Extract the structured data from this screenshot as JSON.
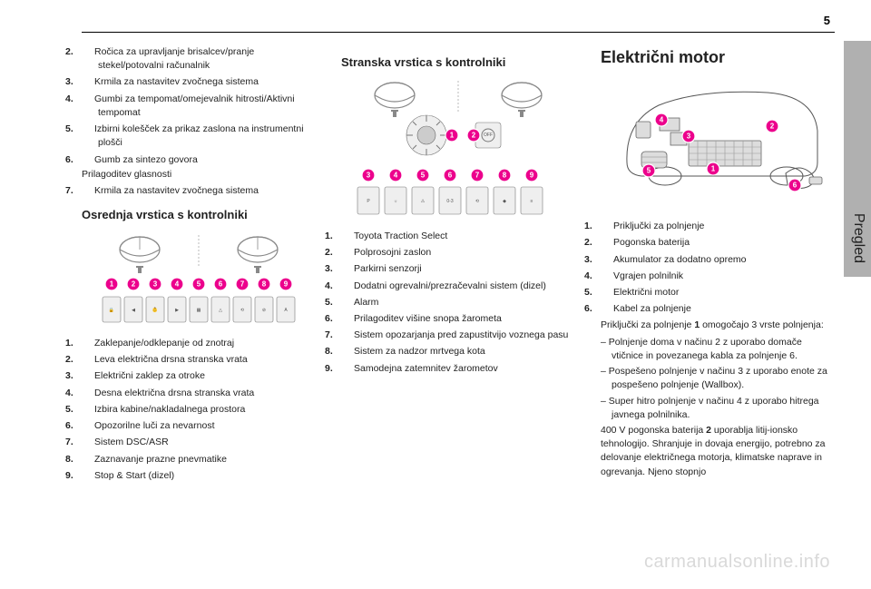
{
  "page_number": "5",
  "side_label": "Pregled",
  "watermark": "carmanualsonline.info",
  "colors": {
    "marker_fill": "#ec008c",
    "marker_text": "#ffffff",
    "diagram_stroke": "#888888",
    "panel_fill": "#efefef",
    "side_tab": "#b0b0b0",
    "watermark_color": "#d9d9d9"
  },
  "col1": {
    "upper_list": [
      {
        "n": "2.",
        "t": "Ročica za upravljanje brisalcev/pranje stekel/potovalni računalnik"
      },
      {
        "n": "3.",
        "t": "Krmila za nastavitev zvočnega sistema"
      },
      {
        "n": "4.",
        "t": "Gumbi za tempomat/omejevalnik hitrosti/Aktivni tempomat"
      },
      {
        "n": "5.",
        "t": "Izbirni kolešček za prikaz zaslona na instrumentni plošči"
      },
      {
        "n": "6.",
        "t": "Gumb za sintezo govora"
      },
      {
        "n": "",
        "t": "Prilagoditev glasnosti"
      },
      {
        "n": "7.",
        "t": "Krmila za nastavitev zvočnega sistema"
      }
    ],
    "heading": "Osrednja vrstica s kontrolniki",
    "markers": [
      "1",
      "2",
      "3",
      "4",
      "5",
      "6",
      "7",
      "8",
      "9"
    ],
    "lower_list": [
      {
        "n": "1.",
        "t": "Zaklepanje/odklepanje od znotraj"
      },
      {
        "n": "2.",
        "t": "Leva električna drsna stranska vrata"
      },
      {
        "n": "3.",
        "t": "Električni zaklep za otroke"
      },
      {
        "n": "4.",
        "t": "Desna električna drsna stranska vrata"
      },
      {
        "n": "5.",
        "t": "Izbira kabine/nakladalnega prostora"
      },
      {
        "n": "6.",
        "t": "Opozorilne luči za nevarnost"
      },
      {
        "n": "7.",
        "t": "Sistem DSC/ASR"
      },
      {
        "n": "8.",
        "t": "Zaznavanje prazne pnevmatike"
      },
      {
        "n": "9.",
        "t": "Stop & Start (dizel)"
      }
    ]
  },
  "col2": {
    "heading": "Stranska vrstica s kontrolniki",
    "markers_top": [
      "1",
      "2"
    ],
    "markers_bottom": [
      "3",
      "4",
      "5",
      "6",
      "7",
      "8",
      "9"
    ],
    "list": [
      {
        "n": "1.",
        "t": "Toyota Traction Select"
      },
      {
        "n": "2.",
        "t": "Polprosojni zaslon"
      },
      {
        "n": "3.",
        "t": "Parkirni senzorji"
      },
      {
        "n": "4.",
        "t": "Dodatni ogrevalni/prezračevalni sistem (dizel)"
      },
      {
        "n": "5.",
        "t": "Alarm"
      },
      {
        "n": "6.",
        "t": "Prilagoditev višine snopa žarometa"
      },
      {
        "n": "7.",
        "t": "Sistem opozarjanja pred zapustitvijo voznega pasu"
      },
      {
        "n": "8.",
        "t": "Sistem za nadzor mrtvega kota"
      },
      {
        "n": "9.",
        "t": "Samodejna zatemnitev žarometov"
      }
    ]
  },
  "col3": {
    "heading": "Električni motor",
    "markers": [
      "1",
      "2",
      "3",
      "4",
      "5",
      "6"
    ],
    "list": [
      {
        "n": "1.",
        "t": "Priključki za polnjenje"
      },
      {
        "n": "2.",
        "t": "Pogonska baterija"
      },
      {
        "n": "3.",
        "t": "Akumulator za dodatno opremo"
      },
      {
        "n": "4.",
        "t": "Vgrajen polnilnik"
      },
      {
        "n": "5.",
        "t": "Električni motor"
      },
      {
        "n": "6.",
        "t": "Kabel za polnjenje"
      }
    ],
    "para1_a": "Priključki za polnjenje ",
    "para1_bold1": "1",
    "para1_b": " omogočajo 3 vrste polnjenja:",
    "dashes": [
      "–  Polnjenje doma v načinu 2 z uporabo domače vtičnice in povezanega kabla za polnjenje 6.",
      "–  Pospešeno polnjenje v načinu 3 z uporabo enote za pospešeno polnjenje (Wallbox).",
      "–  Super hitro polnjenje v načinu 4 z uporabo hitrega javnega polnilnika."
    ],
    "para2_a": "400 V pogonska baterija ",
    "para2_bold": "2",
    "para2_b": " uporablja litij-ionsko tehnologijo. Shranjuje in dovaja energijo, potrebno za delovanje električnega motorja, klimatske naprave in ogrevanja. Njeno stopnjo"
  }
}
